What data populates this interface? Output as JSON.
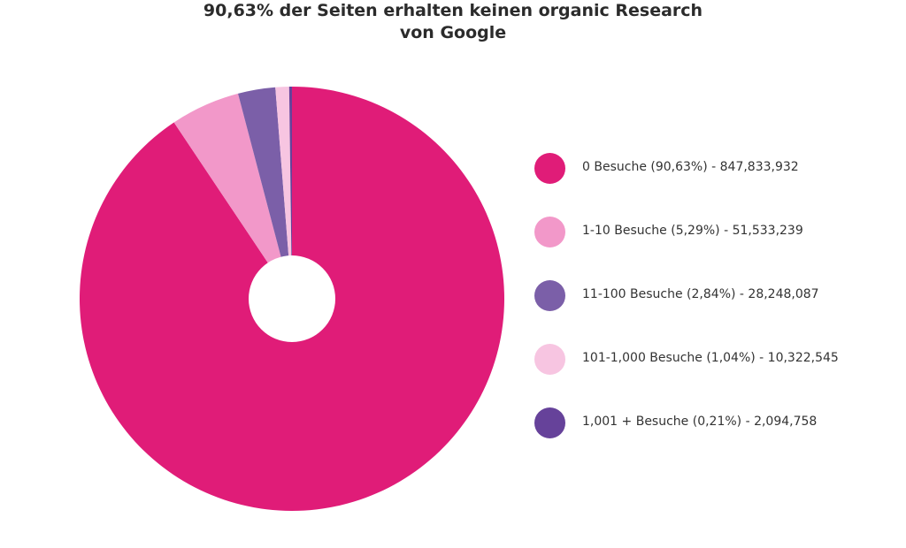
{
  "chart_data": {
    "type": "pie",
    "title_line1": "90,63% der Seiten erhalten keinen organic Research",
    "title_line2": "von Google",
    "slices": [
      {
        "label": "0 Besuche (90,63%) - 847,833,932",
        "value": 90.63,
        "color": "#e01c78"
      },
      {
        "label": "1-10 Besuche (5,29%) - 51,533,239",
        "value": 5.29,
        "color": "#f298c9"
      },
      {
        "label": "11-100 Besuche (2,84%) - 28,248,087",
        "value": 2.84,
        "color": "#7b5fa8"
      },
      {
        "label": "101-1,000 Besuche (1,04%) - 10,322,545",
        "value": 1.04,
        "color": "#f7c5e1"
      },
      {
        "label": "1,001 + Besuche (0,21%) - 2,094,758",
        "value": 0.21,
        "color": "#66429a"
      }
    ],
    "legend_position": "right",
    "donut_hole": true
  }
}
